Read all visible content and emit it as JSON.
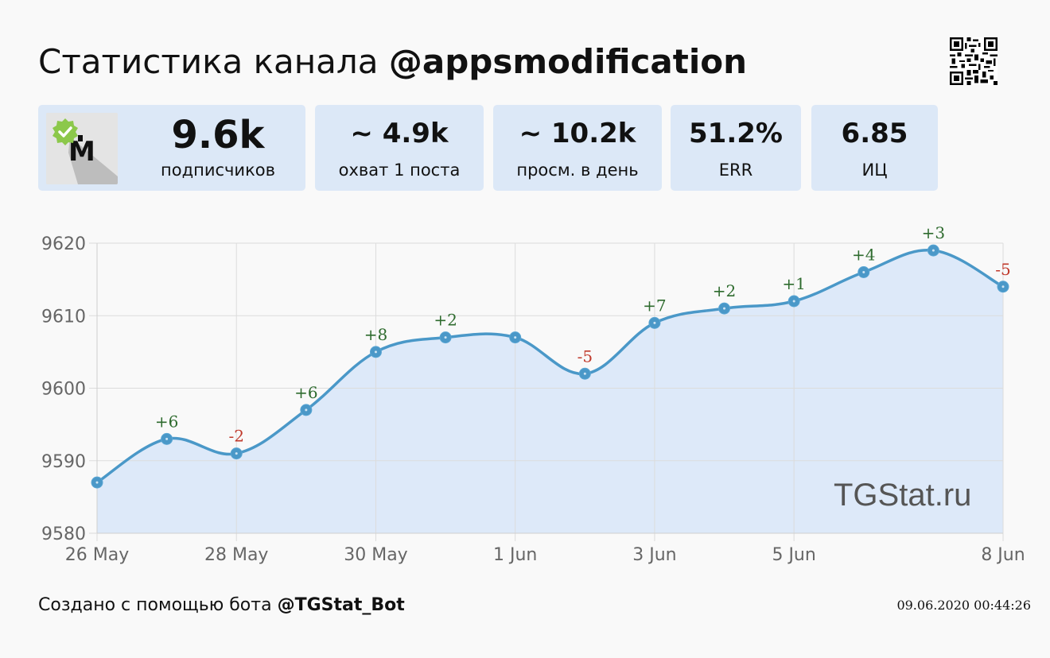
{
  "header": {
    "title_prefix": "Статистика канала",
    "channel": "@appsmodification"
  },
  "stats": [
    {
      "value": "9.6k",
      "label": "подписчиков"
    },
    {
      "value": "~ 4.9k",
      "label": "охват 1 поста"
    },
    {
      "value": "~ 10.2k",
      "label": "просм. в день"
    },
    {
      "value": "51.2%",
      "label": "ERR"
    },
    {
      "value": "6.85",
      "label": "ИЦ"
    }
  ],
  "icons": {
    "avatar": "channel-avatar-icon",
    "verified": "verified-badge-icon",
    "qr": "qr-code-icon"
  },
  "colors": {
    "line": "#4a98c8",
    "fill": "#dde9f9",
    "positive": "#2e6b2e",
    "negative": "#c0392b",
    "card": "#dce8f7",
    "badge": "#8cc84b"
  },
  "chart_data": {
    "type": "area",
    "x": [
      "26 May",
      "27 May",
      "28 May",
      "29 May",
      "30 May",
      "31 May",
      "1 Jun",
      "2 Jun",
      "3 Jun",
      "4 Jun",
      "5 Jun",
      "6 Jun",
      "7 Jun",
      "8 Jun"
    ],
    "values": [
      9587,
      9593,
      9591,
      9597,
      9605,
      9607,
      9607,
      9602,
      9609,
      9611,
      9612,
      9616,
      9619,
      9614
    ],
    "point_labels": [
      "",
      "+6",
      "-2",
      "+6",
      "+8",
      "+2",
      "",
      "-5",
      "+7",
      "+2",
      "+1",
      "+4",
      "+3",
      "-5"
    ],
    "x_ticks": [
      "26 May",
      "28 May",
      "30 May",
      "1 Jun",
      "3 Jun",
      "5 Jun",
      "8 Jun"
    ],
    "x_tick_index": [
      0,
      2,
      4,
      6,
      8,
      10,
      13
    ],
    "y_ticks": [
      9580,
      9590,
      9600,
      9610,
      9620
    ],
    "ylim": [
      9580,
      9620
    ],
    "grid": true,
    "legend": "none"
  },
  "watermark": "TGStat.ru",
  "footer": {
    "prefix": "Создано с помощью бота",
    "bot": "@TGStat_Bot",
    "timestamp": "09.06.2020 00:44:26"
  }
}
